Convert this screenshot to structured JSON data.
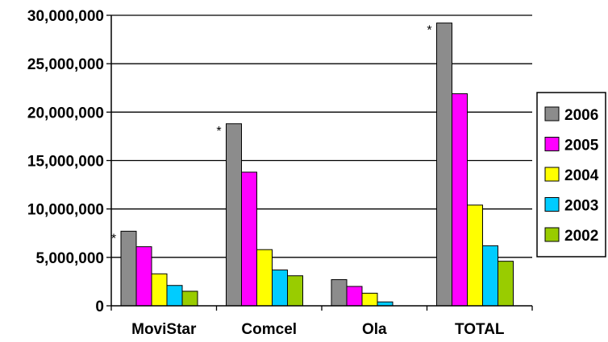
{
  "chart_data": {
    "type": "bar",
    "categories": [
      "MoviStar",
      "Comcel",
      "Ola",
      "TOTAL"
    ],
    "series": [
      {
        "name": "2006",
        "color": "#8c8c8c",
        "values": [
          7700000,
          18800000,
          2700000,
          29200000
        ]
      },
      {
        "name": "2005",
        "color": "#ff00ff",
        "values": [
          6100000,
          13800000,
          2000000,
          21900000
        ]
      },
      {
        "name": "2004",
        "color": "#ffff00",
        "values": [
          3300000,
          5800000,
          1300000,
          10400000
        ]
      },
      {
        "name": "2003",
        "color": "#00ccff",
        "values": [
          2100000,
          3700000,
          400000,
          6200000
        ]
      },
      {
        "name": "2002",
        "color": "#99cc00",
        "values": [
          1500000,
          3100000,
          0,
          4600000
        ]
      }
    ],
    "annotations": [
      {
        "text": "*",
        "category": "MoviStar"
      },
      {
        "text": "*",
        "category": "Comcel"
      },
      {
        "text": "*",
        "category": "TOTAL"
      }
    ],
    "ylim": [
      0,
      30000000
    ],
    "yticks": [
      "0",
      "5,000,000",
      "10,000,000",
      "15,000,000",
      "20,000,000",
      "25,000,000",
      "30,000,000"
    ],
    "grid": true,
    "legend_position": "right",
    "title": "",
    "xlabel": "",
    "ylabel": ""
  }
}
